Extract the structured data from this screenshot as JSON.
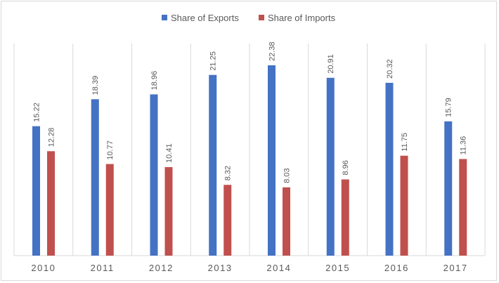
{
  "chart_data": {
    "type": "bar",
    "categories": [
      "2010",
      "2011",
      "2012",
      "2013",
      "2014",
      "2015",
      "2016",
      "2017"
    ],
    "series": [
      {
        "name": "Share of Exports",
        "color": "#4472c4",
        "values": [
          15.22,
          18.39,
          18.96,
          21.25,
          22.38,
          20.91,
          20.32,
          15.79
        ]
      },
      {
        "name": "Share of Imports",
        "color": "#c0504d",
        "values": [
          12.28,
          10.77,
          10.41,
          8.32,
          8.03,
          8.96,
          11.75,
          11.36
        ]
      }
    ],
    "title": "",
    "xlabel": "",
    "ylabel": "",
    "ylim": [
      0,
      25
    ],
    "grid": "vertical category separators",
    "legend": "top-center",
    "data_labels": true,
    "data_label_orientation": "vertical"
  }
}
